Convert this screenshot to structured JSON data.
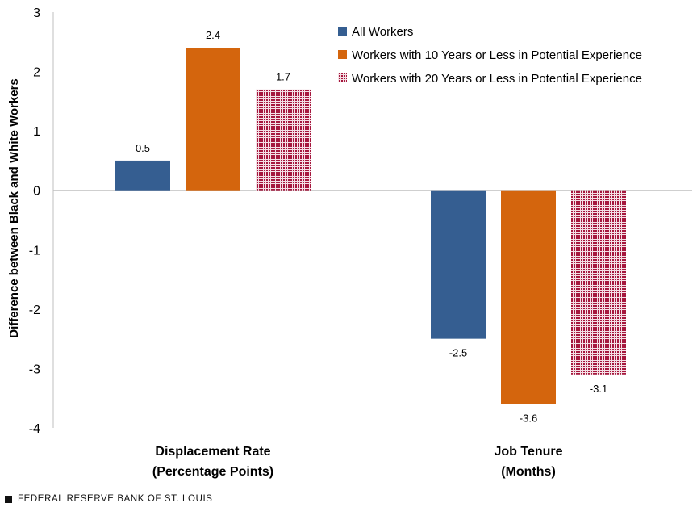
{
  "chart_data": {
    "type": "bar",
    "categories": [
      [
        "Displacement Rate",
        "(Percentage Points)"
      ],
      [
        "Job Tenure",
        "(Months)"
      ]
    ],
    "series": [
      {
        "name": "All Workers",
        "values": [
          0.5,
          -2.5
        ],
        "color": "#355E91",
        "pattern": "solid"
      },
      {
        "name": "Workers with 10 Years or Less in Potential Experience",
        "values": [
          2.4,
          -3.6
        ],
        "color": "#D4650D",
        "pattern": "solid"
      },
      {
        "name": "Workers with 20 Years or Less in Potential Experience",
        "values": [
          1.7,
          -3.1
        ],
        "color": "#A5173D",
        "pattern": "dotted"
      }
    ],
    "data_labels": [
      [
        "0.5",
        "-2.5"
      ],
      [
        "2.4",
        "-3.6"
      ],
      [
        "1.7",
        "-3.1"
      ]
    ],
    "ylabel": "Difference between Black and White Workers",
    "ylim": [
      -4,
      3
    ],
    "yticks": [
      3,
      2,
      1,
      0,
      -1,
      -2,
      -3,
      -4
    ],
    "grid": false,
    "legend_position": "top-right"
  },
  "footer": {
    "source": "FEDERAL RESERVE BANK OF ST. LOUIS"
  }
}
